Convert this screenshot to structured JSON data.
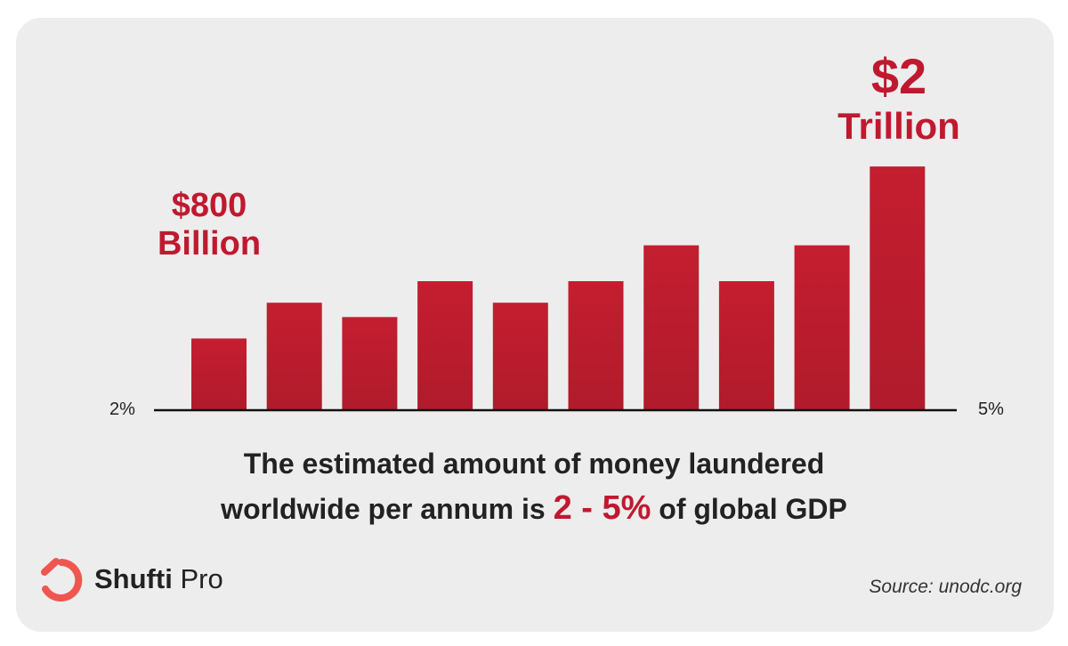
{
  "chart_data": {
    "type": "bar",
    "values": [
      1.0,
      1.5,
      1.3,
      1.8,
      1.5,
      1.8,
      2.3,
      1.8,
      2.3,
      3.4
    ],
    "ylim": [
      0,
      3.6
    ],
    "bar_color": "#b01b2b",
    "axis_left_label": "2%",
    "axis_right_label": "5%",
    "callout_low": {
      "amount": "$800",
      "unit": "Billion"
    },
    "callout_high": {
      "amount": "$2",
      "unit": "Trillion"
    }
  },
  "headline": {
    "line1": "The estimated amount of money laundered",
    "line2_before": "worldwide per annum is",
    "line2_highlight": "2 - 5%",
    "line2_after": "of global GDP"
  },
  "brand": {
    "name_bold": "Shufti",
    "name_regular": "Pro",
    "color": "#f0564f"
  },
  "source": "Source: unodc.org"
}
